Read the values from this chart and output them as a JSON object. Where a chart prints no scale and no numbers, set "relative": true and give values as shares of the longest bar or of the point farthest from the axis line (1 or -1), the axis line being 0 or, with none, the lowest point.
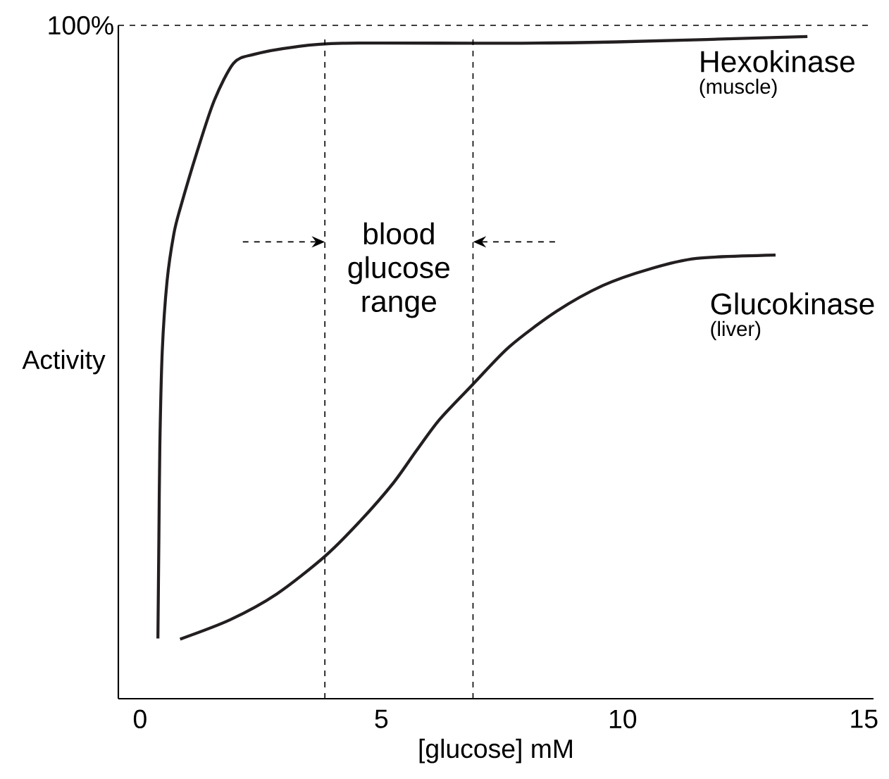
{
  "chart_data": {
    "type": "line",
    "relative": true,
    "xlabel": "[glucose] mM",
    "ylabel": "Activity",
    "xlim": [
      -0.45,
      15.2
    ],
    "xticks": [
      0,
      5,
      10,
      15
    ],
    "marker": "none",
    "line_style": "solid",
    "series": [
      {
        "name": "Hexokinase",
        "color": "#231f20",
        "x": [
          0.37,
          0.39,
          0.41,
          0.46,
          0.56,
          0.7,
          0.83,
          1.19,
          1.54,
          1.94,
          2.35,
          3.16,
          4.2,
          7.57,
          9.88,
          13.83
        ],
        "values": [
          0.091,
          0.241,
          0.382,
          0.525,
          0.631,
          0.702,
          0.74,
          0.828,
          0.904,
          0.96,
          0.973,
          0.984,
          0.99,
          0.99,
          0.992,
          1.0
        ]
      },
      {
        "name": "Glucokinase",
        "color": "#231f20",
        "x": [
          0.83,
          1.86,
          2.83,
          3.83,
          4.57,
          5.25,
          5.73,
          6.21,
          6.9,
          7.66,
          8.63,
          9.59,
          10.56,
          11.53,
          13.17
        ],
        "values": [
          0.09,
          0.119,
          0.158,
          0.215,
          0.269,
          0.326,
          0.375,
          0.422,
          0.475,
          0.532,
          0.585,
          0.624,
          0.649,
          0.665,
          0.67
        ]
      }
    ],
    "ref_lines": [
      {
        "axis": "y",
        "value": 1.017,
        "line_style": "dashed"
      },
      {
        "axis": "x",
        "value": 3.83,
        "line_style": "dashed"
      },
      {
        "axis": "x",
        "value": 6.9,
        "line_style": "dashed"
      }
    ],
    "annotations": [
      "(muscle)",
      "(liver)",
      "blood glucose range",
      "100%"
    ]
  }
}
